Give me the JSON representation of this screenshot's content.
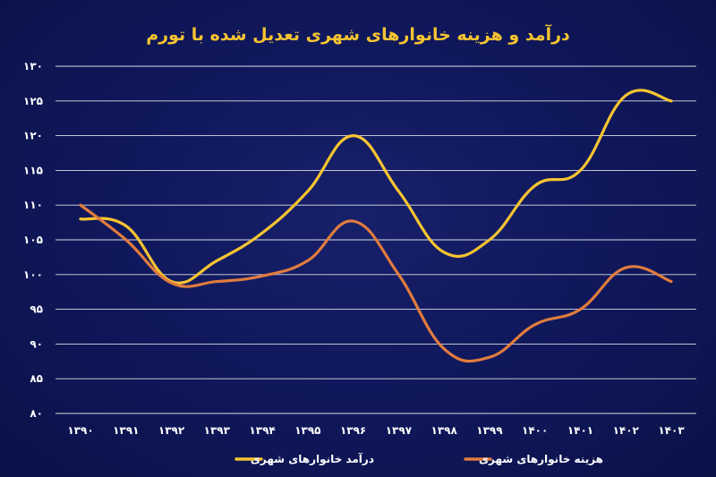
{
  "chart_data": {
    "type": "line",
    "title": "درآمد و هزینه خانوارهای شهری تعدیل شده با تورم",
    "xlabel": "",
    "ylabel": "",
    "categories": [
      "۱۳۹۰",
      "۱۳۹۱",
      "۱۳۹۲",
      "۱۳۹۳",
      "۱۳۹۴",
      "۱۳۹۵",
      "۱۳۹۶",
      "۱۳۹۷",
      "۱۳۹۸",
      "۱۳۹۹",
      "۱۴۰۰",
      "۱۴۰۱",
      "۱۴۰۲",
      "۱۴۰۳"
    ],
    "y_ticks": [
      "۸۰",
      "۸۵",
      "۹۰",
      "۹۵",
      "۱۰۰",
      "۱۰۵",
      "۱۱۰",
      "۱۱۵",
      "۱۲۰",
      "۱۲۵",
      "۱۳۰"
    ],
    "ylim": [
      80,
      130
    ],
    "grid": true,
    "legend_position": "bottom",
    "series": [
      {
        "name": "درآمد خانوارهای شهری",
        "color": "#f6c431",
        "values": [
          108,
          107,
          99,
          102,
          106,
          112,
          120,
          112,
          103.2,
          105,
          112.8,
          115,
          125.8,
          125
        ]
      },
      {
        "name": "هزینه خانوارهای شهری",
        "color": "#e07c3e",
        "values": [
          110,
          105,
          98.8,
          99,
          99.8,
          102,
          107.7,
          100,
          89.3,
          88.1,
          92.8,
          95,
          101,
          99
        ]
      }
    ]
  }
}
